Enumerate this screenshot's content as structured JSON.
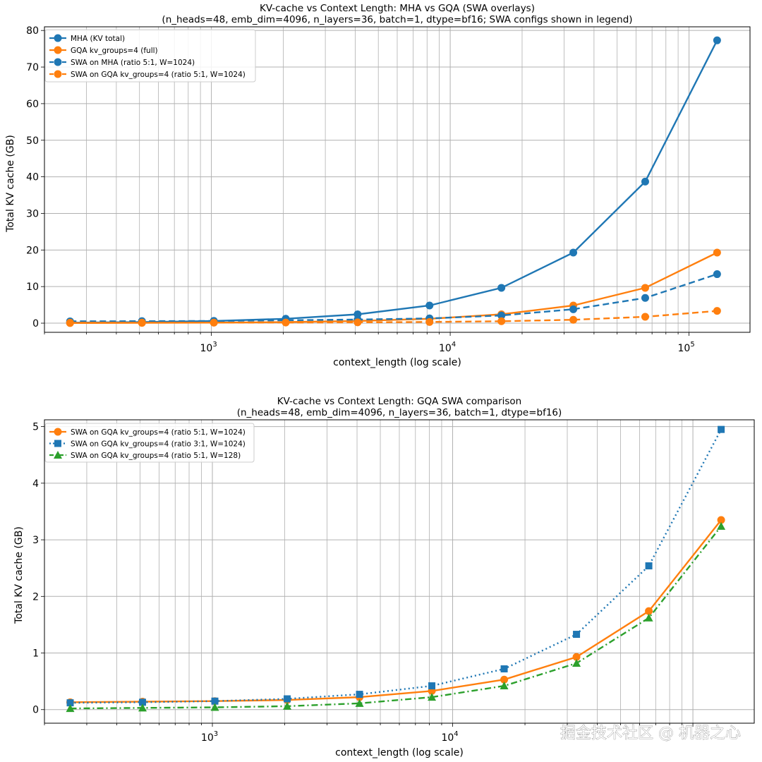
{
  "colors": {
    "blue": "#1f77b4",
    "orange": "#ff7f0e",
    "green": "#2ca02c",
    "grid": "#b0b0b0"
  },
  "watermark": "掘金技术社区 @ 机器之心",
  "chart_data": [
    {
      "type": "line",
      "title": "KV-cache vs Context Length: MHA vs GQA (SWA overlays)",
      "subtitle": "(n_heads=48, emb_dim=4096, n_layers=36, batch=1, dtype=bf16; SWA configs shown in legend)",
      "xlabel": "context_length (log scale)",
      "ylabel": "Total KV cache (GB)",
      "xscale": "log",
      "xlim": [
        200,
        180000
      ],
      "ylim": [
        -2.5,
        81
      ],
      "yticks": [
        0,
        10,
        20,
        30,
        40,
        50,
        60,
        70,
        80
      ],
      "yticklabels": [
        "0",
        "10",
        "20",
        "30",
        "40",
        "50",
        "60",
        "70",
        "80"
      ],
      "xticks": [
        1000,
        10000,
        100000
      ],
      "xticklabels": [
        [
          "10",
          "3"
        ],
        [
          "10",
          "4"
        ],
        [
          "10",
          "5"
        ]
      ],
      "grid": true,
      "legend_loc": "upper-left",
      "x": [
        256,
        512,
        1024,
        2048,
        4096,
        8192,
        16384,
        32768,
        65536,
        131072
      ],
      "series": [
        {
          "name": "MHA (KV total)",
          "color": "#1f77b4",
          "dash": "solid",
          "marker": "circle",
          "values": [
            0.15,
            0.3,
            0.6,
            1.21,
            2.42,
            4.83,
            9.66,
            19.3,
            38.7,
            77.3
          ]
        },
        {
          "name": "GQA kv_groups=4 (full)",
          "color": "#ff7f0e",
          "dash": "solid",
          "marker": "circle",
          "values": [
            0.04,
            0.08,
            0.15,
            0.3,
            0.6,
            1.21,
            2.42,
            4.83,
            9.66,
            19.3
          ]
        },
        {
          "name": "SWA on MHA (ratio 5:1, W=1024)",
          "color": "#1f77b4",
          "dash": "dashed",
          "marker": "circle",
          "values": [
            0.5,
            0.55,
            0.6,
            0.8,
            1.0,
            1.3,
            2.1,
            3.8,
            6.9,
            13.4
          ]
        },
        {
          "name": "SWA on GQA kv_groups=4 (ratio 5:1, W=1024)",
          "color": "#ff7f0e",
          "dash": "dashed",
          "marker": "circle",
          "values": [
            0.13,
            0.14,
            0.15,
            0.17,
            0.22,
            0.33,
            0.53,
            0.93,
            1.74,
            3.35
          ]
        }
      ]
    },
    {
      "type": "line",
      "title": "KV-cache vs Context Length: GQA SWA comparison",
      "subtitle": "(n_heads=48, emb_dim=4096, n_layers=36, batch=1, dtype=bf16)",
      "xlabel": "context_length (log scale)",
      "ylabel": "Total KV cache (GB)",
      "xscale": "log",
      "xlim": [
        200,
        180000
      ],
      "ylim": [
        -0.24,
        5.12
      ],
      "yticks": [
        0,
        1,
        2,
        3,
        4,
        5
      ],
      "yticklabels": [
        "0",
        "1",
        "2",
        "3",
        "4",
        "5"
      ],
      "xticks": [
        1000,
        10000
      ],
      "xticklabels": [
        [
          "10",
          "3"
        ],
        [
          "10",
          "4"
        ]
      ],
      "grid": true,
      "legend_loc": "upper-left",
      "x": [
        256,
        512,
        1024,
        2048,
        4096,
        8192,
        16384,
        32768,
        65536,
        131072
      ],
      "series": [
        {
          "name": "SWA on GQA kv_groups=4 (ratio 5:1, W=1024)",
          "color": "#ff7f0e",
          "dash": "solid",
          "marker": "circle",
          "values": [
            0.13,
            0.14,
            0.15,
            0.17,
            0.22,
            0.33,
            0.53,
            0.93,
            1.74,
            3.35
          ]
        },
        {
          "name": "SWA on GQA kv_groups=4 (ratio 3:1, W=1024)",
          "color": "#1f77b4",
          "dash": "dotted",
          "marker": "square",
          "values": [
            0.12,
            0.13,
            0.15,
            0.19,
            0.27,
            0.42,
            0.72,
            1.33,
            2.54,
            4.95
          ]
        },
        {
          "name": "SWA on GQA kv_groups=4 (ratio 5:1, W=128)",
          "color": "#2ca02c",
          "dash": "dashdot",
          "marker": "triangle",
          "values": [
            0.02,
            0.03,
            0.04,
            0.06,
            0.11,
            0.22,
            0.42,
            0.82,
            1.62,
            3.24
          ]
        }
      ]
    }
  ]
}
